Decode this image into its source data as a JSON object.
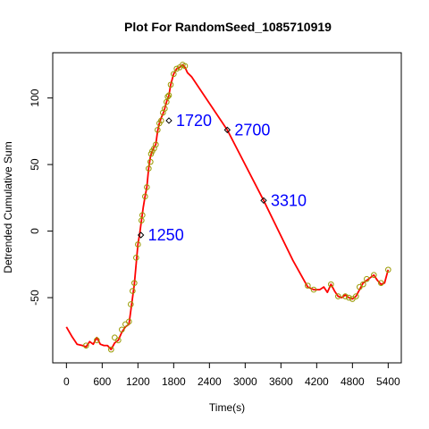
{
  "chart_data": {
    "type": "line",
    "title": "Plot For RandomSeed_1085710919",
    "xlabel": "Time(s)",
    "ylabel": "Detrended Cumulative Sum",
    "xlim": [
      -230,
      5620
    ],
    "ylim": [
      -99,
      134
    ],
    "xticks": [
      0,
      600,
      1200,
      1800,
      2400,
      3000,
      3600,
      4200,
      4800,
      5400
    ],
    "xtick_labels": [
      "0",
      "600",
      "1200",
      "1800",
      "2400",
      "3000",
      "3600",
      "4200",
      "4800",
      "5400"
    ],
    "yticks": [
      -50,
      0,
      50,
      100
    ],
    "ytick_labels": [
      "-50",
      "0",
      "50",
      "100"
    ],
    "grid": false,
    "colors": {
      "line": "#ff0000",
      "point": "#999900",
      "segment_marker": "#000000",
      "annotation": "#0000ff"
    },
    "series": [
      {
        "type": "line",
        "points": [
          [
            0,
            -72
          ],
          [
            90,
            -79
          ],
          [
            180,
            -85
          ],
          [
            270,
            -86
          ],
          [
            330,
            -87
          ],
          [
            390,
            -83
          ],
          [
            450,
            -85
          ],
          [
            510,
            -80
          ],
          [
            570,
            -85
          ],
          [
            630,
            -86
          ],
          [
            690,
            -86
          ],
          [
            750,
            -89
          ],
          [
            810,
            -84
          ],
          [
            870,
            -82
          ],
          [
            930,
            -76
          ],
          [
            990,
            -72
          ],
          [
            1050,
            -70
          ],
          [
            1080,
            -60
          ],
          [
            1110,
            -50
          ],
          [
            1140,
            -40
          ],
          [
            1170,
            -25
          ],
          [
            1200,
            -10
          ],
          [
            1230,
            -2
          ],
          [
            1260,
            8
          ],
          [
            1290,
            18
          ],
          [
            1320,
            26
          ],
          [
            1350,
            33
          ],
          [
            1380,
            47
          ],
          [
            1410,
            56
          ],
          [
            1440,
            60
          ],
          [
            1470,
            63
          ],
          [
            1500,
            65
          ],
          [
            1530,
            75
          ],
          [
            1560,
            81
          ],
          [
            1590,
            85
          ],
          [
            1620,
            88
          ],
          [
            1650,
            92
          ],
          [
            1680,
            97
          ],
          [
            1720,
            102
          ],
          [
            1750,
            110
          ],
          [
            1800,
            118
          ],
          [
            1850,
            122
          ],
          [
            1900,
            123
          ],
          [
            1950,
            125
          ],
          [
            1990,
            123
          ],
          [
            2030,
            119
          ],
          [
            2100,
            116
          ],
          [
            2700,
            76
          ],
          [
            3310,
            23
          ],
          [
            3800,
            -22
          ],
          [
            4050,
            -42
          ],
          [
            4150,
            -44
          ],
          [
            4250,
            -44
          ],
          [
            4320,
            -42
          ],
          [
            4380,
            -46
          ],
          [
            4440,
            -40
          ],
          [
            4500,
            -45
          ],
          [
            4560,
            -49
          ],
          [
            4620,
            -50
          ],
          [
            4680,
            -48
          ],
          [
            4740,
            -50
          ],
          [
            4800,
            -51
          ],
          [
            4860,
            -49
          ],
          [
            4920,
            -44
          ],
          [
            4980,
            -39
          ],
          [
            5040,
            -37
          ],
          [
            5100,
            -35
          ],
          [
            5160,
            -33
          ],
          [
            5220,
            -37
          ],
          [
            5280,
            -40
          ],
          [
            5340,
            -39
          ],
          [
            5400,
            -29
          ]
        ]
      },
      {
        "type": "scatter",
        "points": [
          [
            330,
            -86
          ],
          [
            510,
            -82
          ],
          [
            750,
            -89
          ],
          [
            810,
            -80
          ],
          [
            870,
            -82
          ],
          [
            930,
            -74
          ],
          [
            990,
            -70
          ],
          [
            1050,
            -68
          ],
          [
            1080,
            -55
          ],
          [
            1110,
            -45
          ],
          [
            1140,
            -39
          ],
          [
            1170,
            -20
          ],
          [
            1200,
            -10
          ],
          [
            1260,
            8
          ],
          [
            1275,
            12
          ],
          [
            1320,
            26
          ],
          [
            1350,
            33
          ],
          [
            1380,
            47
          ],
          [
            1410,
            52
          ],
          [
            1420,
            58
          ],
          [
            1440,
            60
          ],
          [
            1470,
            62
          ],
          [
            1500,
            65
          ],
          [
            1530,
            76
          ],
          [
            1560,
            81
          ],
          [
            1590,
            83
          ],
          [
            1620,
            89
          ],
          [
            1650,
            92
          ],
          [
            1680,
            97
          ],
          [
            1700,
            101
          ],
          [
            1720,
            102
          ],
          [
            1750,
            110
          ],
          [
            1800,
            118
          ],
          [
            1850,
            122
          ],
          [
            1900,
            123
          ],
          [
            1950,
            125
          ],
          [
            1990,
            124
          ],
          [
            4050,
            -41
          ],
          [
            4150,
            -44
          ],
          [
            4440,
            -40
          ],
          [
            4560,
            -49
          ],
          [
            4680,
            -49
          ],
          [
            4740,
            -50
          ],
          [
            4800,
            -51
          ],
          [
            4860,
            -49
          ],
          [
            4920,
            -42
          ],
          [
            4980,
            -40
          ],
          [
            5040,
            -36
          ],
          [
            5160,
            -33
          ],
          [
            5280,
            -39
          ],
          [
            5400,
            -29
          ]
        ]
      }
    ],
    "change_points": [
      {
        "x": 1250,
        "y": -3,
        "label": "1250"
      },
      {
        "x": 1720,
        "y": 83,
        "label": "1720"
      },
      {
        "x": 2700,
        "y": 76,
        "label": "2700"
      },
      {
        "x": 3310,
        "y": 23,
        "label": "3310"
      }
    ]
  }
}
